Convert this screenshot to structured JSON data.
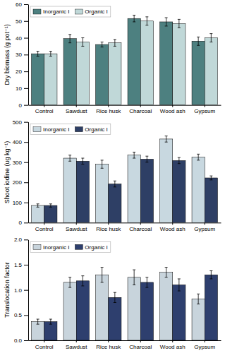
{
  "chart_data": [
    {
      "type": "bar",
      "categories": [
        "Control",
        "Sawdust",
        "Rice husk",
        "Charcoal",
        "Wood ash",
        "Gypsum"
      ],
      "ylabel": "Dry biomass (g pot⁻¹)",
      "ylim": [
        0,
        60
      ],
      "yticks": [
        0,
        10,
        20,
        30,
        40,
        50,
        60
      ],
      "legend": "upper-left",
      "series": [
        {
          "name": "Inorganic I",
          "color": "#4d8080",
          "values": [
            30.5,
            39.5,
            36.0,
            51.5,
            49.5,
            38.0
          ],
          "errors": [
            1.5,
            2.5,
            1.5,
            2.0,
            2.5,
            2.5
          ]
        },
        {
          "name": "Organic I",
          "color": "#c0d8d8",
          "values": [
            30.5,
            37.5,
            37.0,
            50.0,
            48.5,
            40.0
          ],
          "errors": [
            1.5,
            2.5,
            2.0,
            2.5,
            2.5,
            2.5
          ]
        }
      ]
    },
    {
      "type": "bar",
      "categories": [
        "Control",
        "Sawdust",
        "Rice husk",
        "Charcoal",
        "Wood ash",
        "Gypsum"
      ],
      "ylabel": "Shoot iodine (ug kg⁻¹)",
      "ylim": [
        0,
        500
      ],
      "yticks": [
        0,
        100,
        200,
        300,
        400,
        500
      ],
      "legend": "upper-left",
      "series": [
        {
          "name": "Inorganic I",
          "color": "#c8d8e0",
          "values": [
            85,
            320,
            290,
            335,
            415,
            325
          ],
          "errors": [
            8,
            15,
            20,
            15,
            15,
            15
          ]
        },
        {
          "name": "Organic I",
          "color": "#2e3f65",
          "values": [
            85,
            305,
            192,
            315,
            308,
            222
          ],
          "errors": [
            8,
            15,
            15,
            15,
            15,
            10
          ]
        }
      ]
    },
    {
      "type": "bar",
      "categories": [
        "Control",
        "Sawdust",
        "Rice husk",
        "Charcoal",
        "Wood ash",
        "Gypsum"
      ],
      "ylabel": "Translocation factor",
      "ylim": [
        0,
        2.0
      ],
      "yticks": [
        {
          "value": 0,
          "label": "0.0"
        },
        0.5,
        {
          "value": 1.0,
          "label": "1.0"
        },
        1.5,
        {
          "value": 2.0,
          "label": "2.0"
        }
      ],
      "legend": "upper-left",
      "series": [
        {
          "name": "Inorganic I",
          "color": "#c8d4dc",
          "values": [
            0.37,
            1.15,
            1.3,
            1.25,
            1.35,
            0.82
          ],
          "errors": [
            0.05,
            0.1,
            0.15,
            0.15,
            0.1,
            0.1
          ]
        },
        {
          "name": "Organic I",
          "color": "#2e3f6e",
          "values": [
            0.37,
            1.18,
            0.85,
            1.15,
            1.1,
            1.3
          ],
          "errors": [
            0.05,
            0.1,
            0.1,
            0.1,
            0.12,
            0.08
          ]
        }
      ]
    }
  ]
}
